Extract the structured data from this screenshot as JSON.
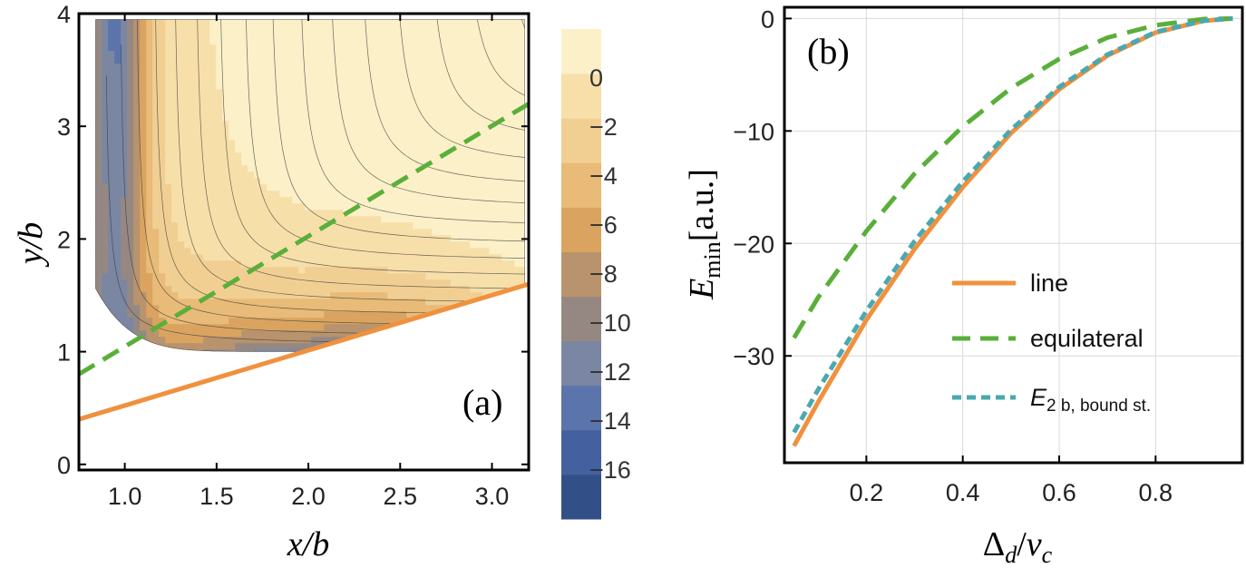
{
  "figure": {
    "panel_a": {
      "tag": "(a)",
      "xlabel": "x/b",
      "ylabel": "y/b",
      "xlim": [
        0.75,
        3.2
      ],
      "ylim": [
        -0.05,
        4.0
      ],
      "xticks": [
        "1.0",
        "1.5",
        "2.0",
        "2.5",
        "3.0"
      ],
      "xtick_values": [
        1.0,
        1.5,
        2.0,
        2.5,
        3.0
      ],
      "yticks": [
        "0",
        "1",
        "2",
        "3",
        "4"
      ],
      "ytick_values": [
        0,
        1,
        2,
        3,
        4
      ]
    },
    "colorbar": {
      "labels": [
        "0",
        "−2",
        "−4",
        "−6",
        "−8",
        "−10",
        "−12",
        "−14",
        "−16"
      ],
      "label_values": [
        0,
        -2,
        -4,
        -6,
        -8,
        -10,
        -12,
        -14,
        -16
      ],
      "range": [
        -18,
        2
      ],
      "colors": [
        "#334f88",
        "#44609f",
        "#5b74ab",
        "#7a86a2",
        "#958883",
        "#b8936d",
        "#daa460",
        "#e8bb78",
        "#f1cf93",
        "#f7dfa9",
        "#fcf0c8"
      ]
    },
    "panel_b": {
      "tag": "(b)",
      "xlabel": "Δ_d/ν_c",
      "xlabel_main": "Δ",
      "xlabel_sub1": "d",
      "xlabel_slash": "/",
      "xlabel_nu": "ν",
      "xlabel_sub2": "c",
      "ylabel": "E_min[a.u.]",
      "ylabel_main": "E",
      "ylabel_sub": "min",
      "ylabel_unit": "[a.u.]",
      "xlim": [
        0.03,
        0.98
      ],
      "ylim": [
        -39.5,
        1.0
      ],
      "xticks": [
        "0.2",
        "0.4",
        "0.6",
        "0.8"
      ],
      "xtick_values": [
        0.2,
        0.4,
        0.6,
        0.8
      ],
      "yticks": [
        "0",
        "−10",
        "−20",
        "−30"
      ],
      "ytick_values": [
        0,
        -10,
        -20,
        -30
      ],
      "legend": [
        {
          "label": "line",
          "color": "#f0913e",
          "dash": "solid"
        },
        {
          "label": "equilateral",
          "color": "#5aaf3a",
          "dash": "long-dash"
        },
        {
          "label_main": "E",
          "label_sub": "2 b, bound st.",
          "color": "#4aa8b0",
          "dash": "short-dash"
        }
      ]
    }
  },
  "chart_data": [
    {
      "type": "heatmap",
      "title": "(a)",
      "xlabel": "x/b",
      "ylabel": "y/b",
      "xlim": [
        0.75,
        3.2
      ],
      "ylim": [
        -0.05,
        4.0
      ],
      "colorbar_range": [
        -18,
        2
      ],
      "series": [
        {
          "name": "line",
          "color": "#f0913e",
          "style": "solid",
          "x": [
            0.75,
            3.2
          ],
          "y": [
            0.4,
            1.6
          ]
        },
        {
          "name": "equilateral",
          "color": "#5aaf3a",
          "style": "dashed",
          "x": [
            0.75,
            3.2
          ],
          "y": [
            0.8,
            3.2
          ]
        }
      ]
    },
    {
      "type": "line",
      "title": "(b)",
      "xlabel": "Δ_d/ν_c",
      "ylabel": "E_min [a.u.]",
      "xlim": [
        0.03,
        0.98
      ],
      "ylim": [
        -39.5,
        1.0
      ],
      "series": [
        {
          "name": "line",
          "color": "#f0913e",
          "style": "solid",
          "x": [
            0.05,
            0.1,
            0.2,
            0.3,
            0.4,
            0.5,
            0.6,
            0.7,
            0.8,
            0.9,
            0.96
          ],
          "y": [
            -38,
            -34.1,
            -26.8,
            -20.5,
            -15.0,
            -10.2,
            -6.3,
            -3.3,
            -1.25,
            -0.2,
            0
          ]
        },
        {
          "name": "equilateral",
          "color": "#5aaf3a",
          "style": "long-dash",
          "x": [
            0.05,
            0.1,
            0.2,
            0.3,
            0.4,
            0.5,
            0.6,
            0.7,
            0.8,
            0.9,
            0.96
          ],
          "y": [
            -28.4,
            -24.8,
            -18.9,
            -13.8,
            -9.6,
            -6.2,
            -3.6,
            -1.7,
            -0.6,
            -0.05,
            0
          ]
        },
        {
          "name": "E_2b, bound st.",
          "color": "#4aa8b0",
          "style": "short-dash",
          "x": [
            0.05,
            0.1,
            0.2,
            0.3,
            0.4,
            0.5,
            0.6,
            0.7,
            0.8,
            0.9,
            0.96
          ],
          "y": [
            -36.8,
            -33.0,
            -26.0,
            -19.8,
            -14.5,
            -9.9,
            -6.1,
            -3.2,
            -1.2,
            -0.2,
            0
          ]
        }
      ]
    }
  ]
}
